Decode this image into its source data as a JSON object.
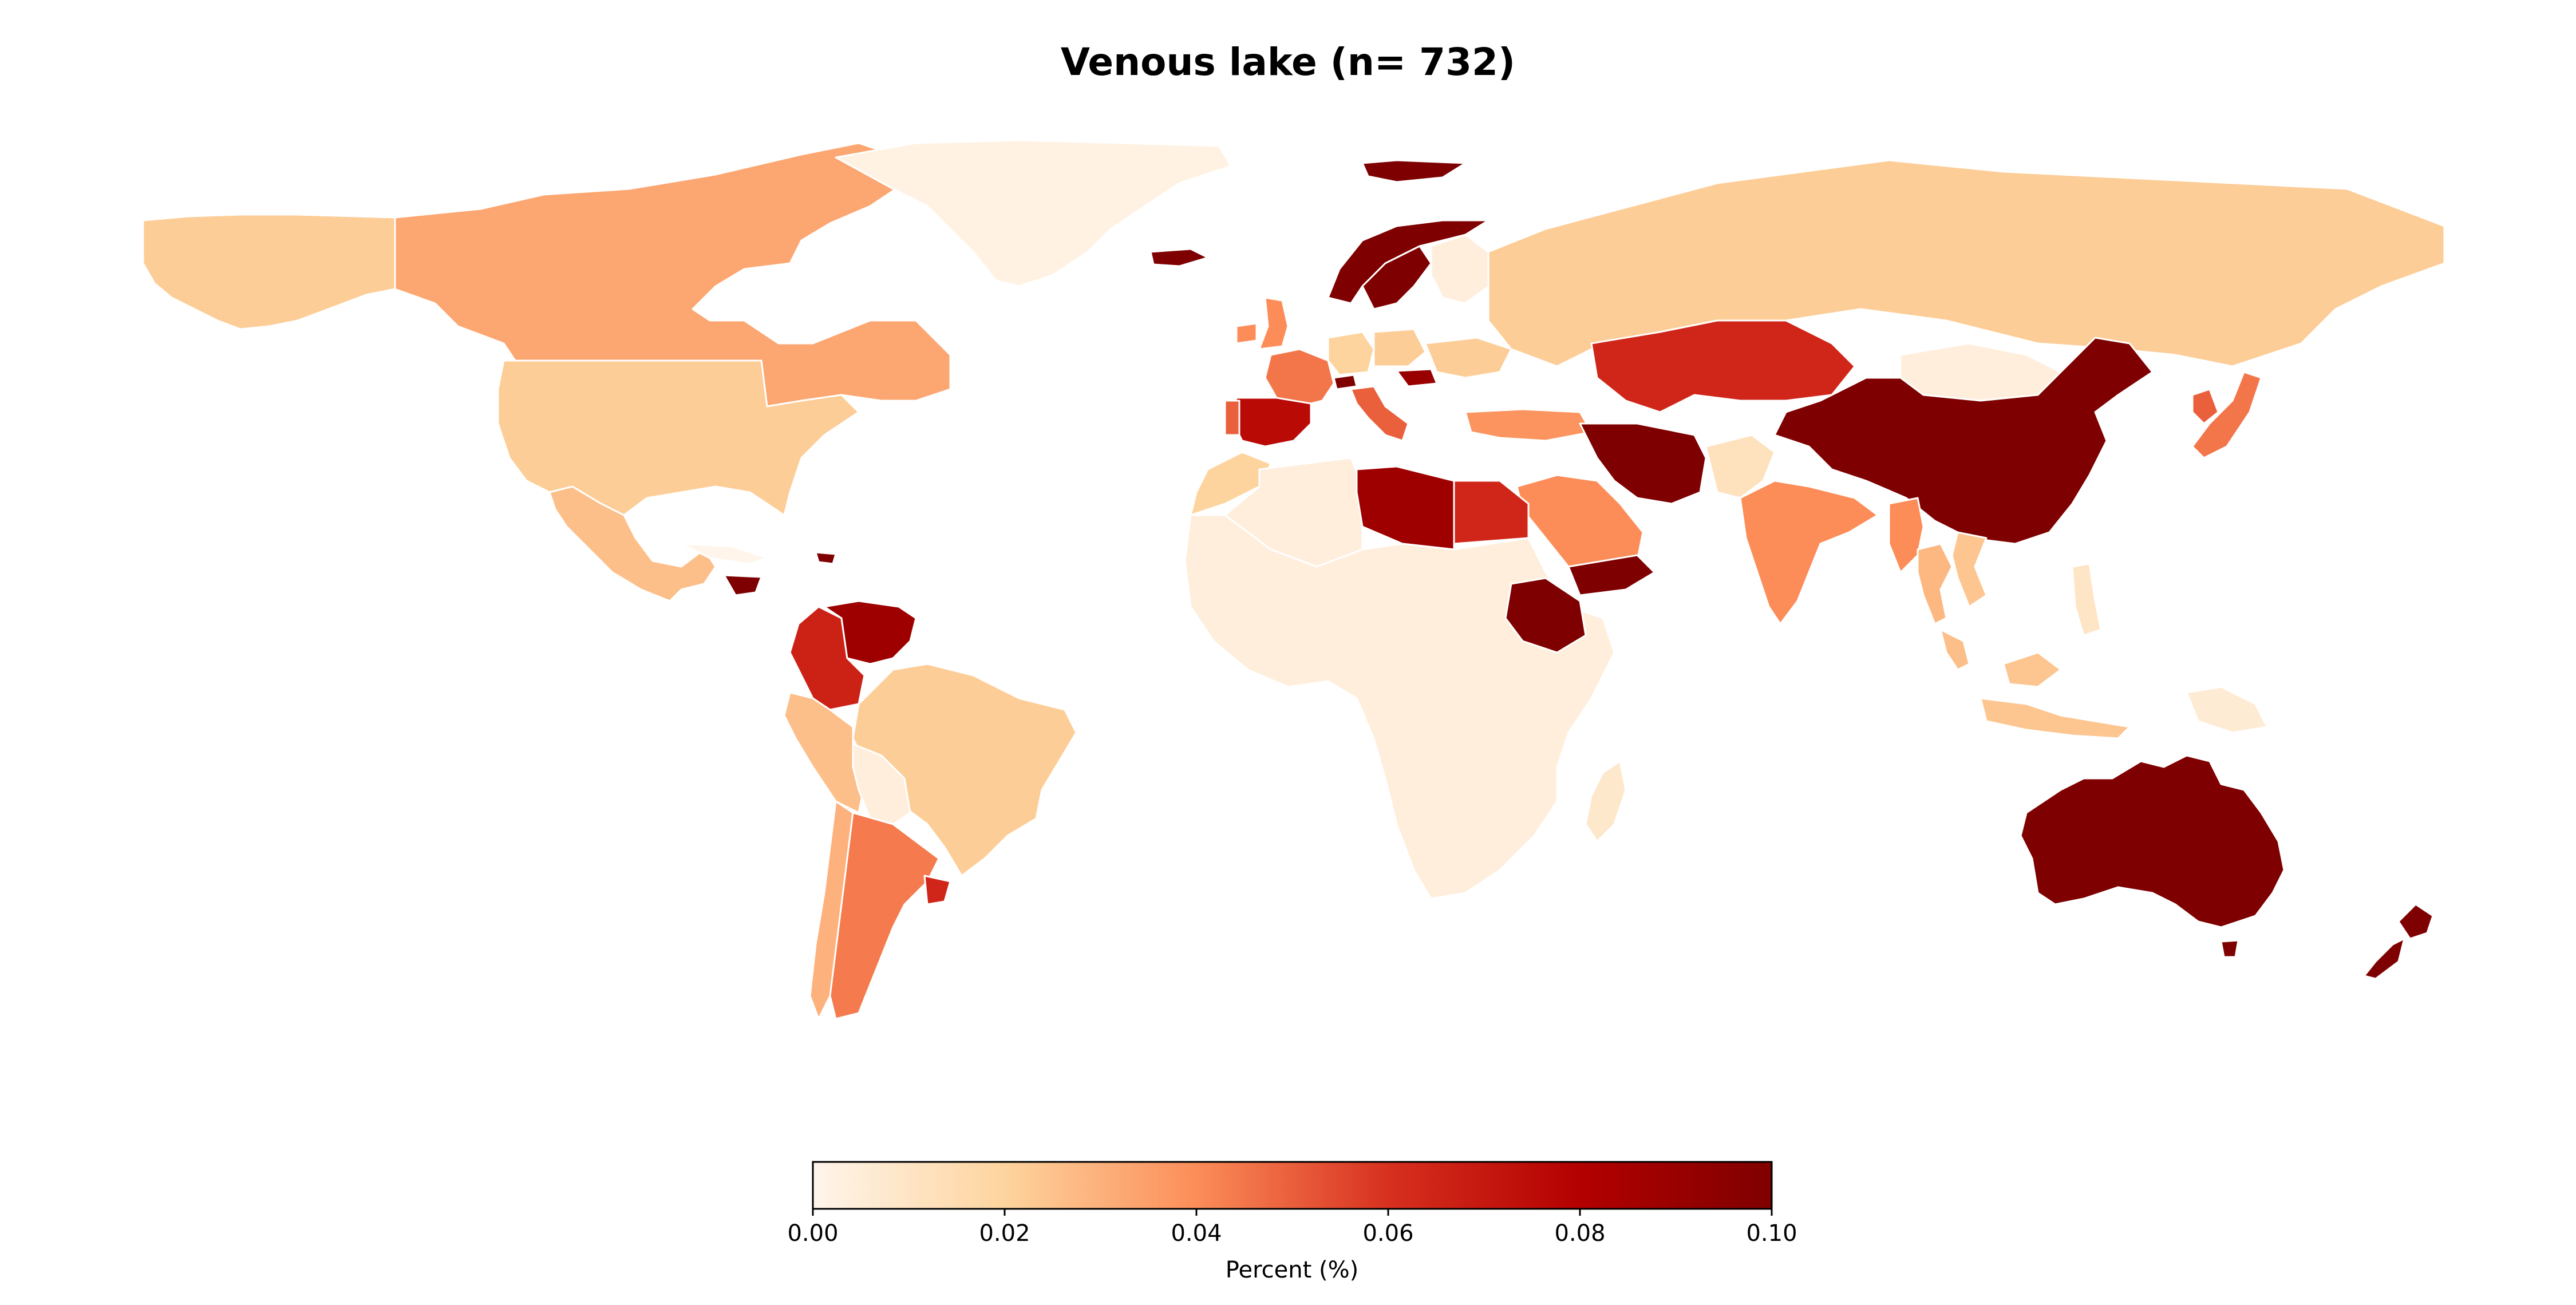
{
  "title": "Venous lake (n= 732)",
  "colorbar": {
    "label": "Percent (%)",
    "min": 0.0,
    "max": 0.1,
    "ticks": [
      "0.00",
      "0.02",
      "0.04",
      "0.06",
      "0.08",
      "0.10"
    ],
    "colormap": [
      "#fff5eb",
      "#fdd49e",
      "#fc8d59",
      "#d7301f",
      "#b30000",
      "#7f0000"
    ]
  },
  "no_data_color": "#ffffff",
  "countries": [
    {
      "name": "Canada",
      "value": 0.033
    },
    {
      "name": "United States",
      "value": 0.022
    },
    {
      "name": "Alaska",
      "value": 0.022
    },
    {
      "name": "Greenland",
      "value": 0.002
    },
    {
      "name": "Mexico",
      "value": 0.026
    },
    {
      "name": "Cuba",
      "value": 0.0
    },
    {
      "name": "Honduras",
      "value": 0.1
    },
    {
      "name": "Dominican Republic",
      "value": 0.1
    },
    {
      "name": "Colombia",
      "value": 0.066
    },
    {
      "name": "Venezuela",
      "value": 0.088
    },
    {
      "name": "Brazil",
      "value": 0.022
    },
    {
      "name": "Peru",
      "value": 0.026
    },
    {
      "name": "Bolivia",
      "value": 0.004
    },
    {
      "name": "Chile",
      "value": 0.03
    },
    {
      "name": "Argentina",
      "value": 0.044
    },
    {
      "name": "Uruguay",
      "value": 0.064
    },
    {
      "name": "Iceland",
      "value": 0.1
    },
    {
      "name": "Svalbard",
      "value": 0.1
    },
    {
      "name": "Norway",
      "value": 0.1
    },
    {
      "name": "Sweden",
      "value": 0.1
    },
    {
      "name": "Finland",
      "value": 0.004
    },
    {
      "name": "United Kingdom",
      "value": 0.04
    },
    {
      "name": "Ireland",
      "value": 0.04
    },
    {
      "name": "France",
      "value": 0.045
    },
    {
      "name": "Spain",
      "value": 0.076
    },
    {
      "name": "Portugal",
      "value": 0.05
    },
    {
      "name": "Germany",
      "value": 0.02
    },
    {
      "name": "Poland",
      "value": 0.022
    },
    {
      "name": "Italy",
      "value": 0.05
    },
    {
      "name": "Switzerland",
      "value": 0.1
    },
    {
      "name": "Hungary",
      "value": 0.09
    },
    {
      "name": "Ukraine",
      "value": 0.022
    },
    {
      "name": "Turkey",
      "value": 0.038
    },
    {
      "name": "Russia",
      "value": 0.022
    },
    {
      "name": "Kazakhstan",
      "value": 0.064
    },
    {
      "name": "Iran",
      "value": 0.1
    },
    {
      "name": "Saudi Arabia",
      "value": 0.04
    },
    {
      "name": "Yemen",
      "value": 0.1
    },
    {
      "name": "Egypt",
      "value": 0.064
    },
    {
      "name": "Libya",
      "value": 0.088
    },
    {
      "name": "Algeria",
      "value": 0.004
    },
    {
      "name": "Morocco",
      "value": 0.02
    },
    {
      "name": "Africa",
      "value": 0.004
    },
    {
      "name": "Ethiopia",
      "value": 0.1
    },
    {
      "name": "Madagascar",
      "value": 0.008
    },
    {
      "name": "India",
      "value": 0.04
    },
    {
      "name": "Pakistan",
      "value": 0.012
    },
    {
      "name": "China",
      "value": 0.1
    },
    {
      "name": "Mongolia",
      "value": 0.004
    },
    {
      "name": "Japan",
      "value": 0.045
    },
    {
      "name": "Korea",
      "value": 0.05
    },
    {
      "name": "Myanmar",
      "value": 0.04
    },
    {
      "name": "Thailand",
      "value": 0.028
    },
    {
      "name": "Vietnam",
      "value": 0.024
    },
    {
      "name": "Malaysia",
      "value": 0.026
    },
    {
      "name": "Indonesia",
      "value": 0.024
    },
    {
      "name": "Philippines",
      "value": 0.01
    },
    {
      "name": "Papua New Guinea",
      "value": 0.006
    },
    {
      "name": "Australia",
      "value": 0.1
    },
    {
      "name": "Tasmania",
      "value": 0.1
    },
    {
      "name": "New Zealand",
      "value": 0.1
    }
  ]
}
